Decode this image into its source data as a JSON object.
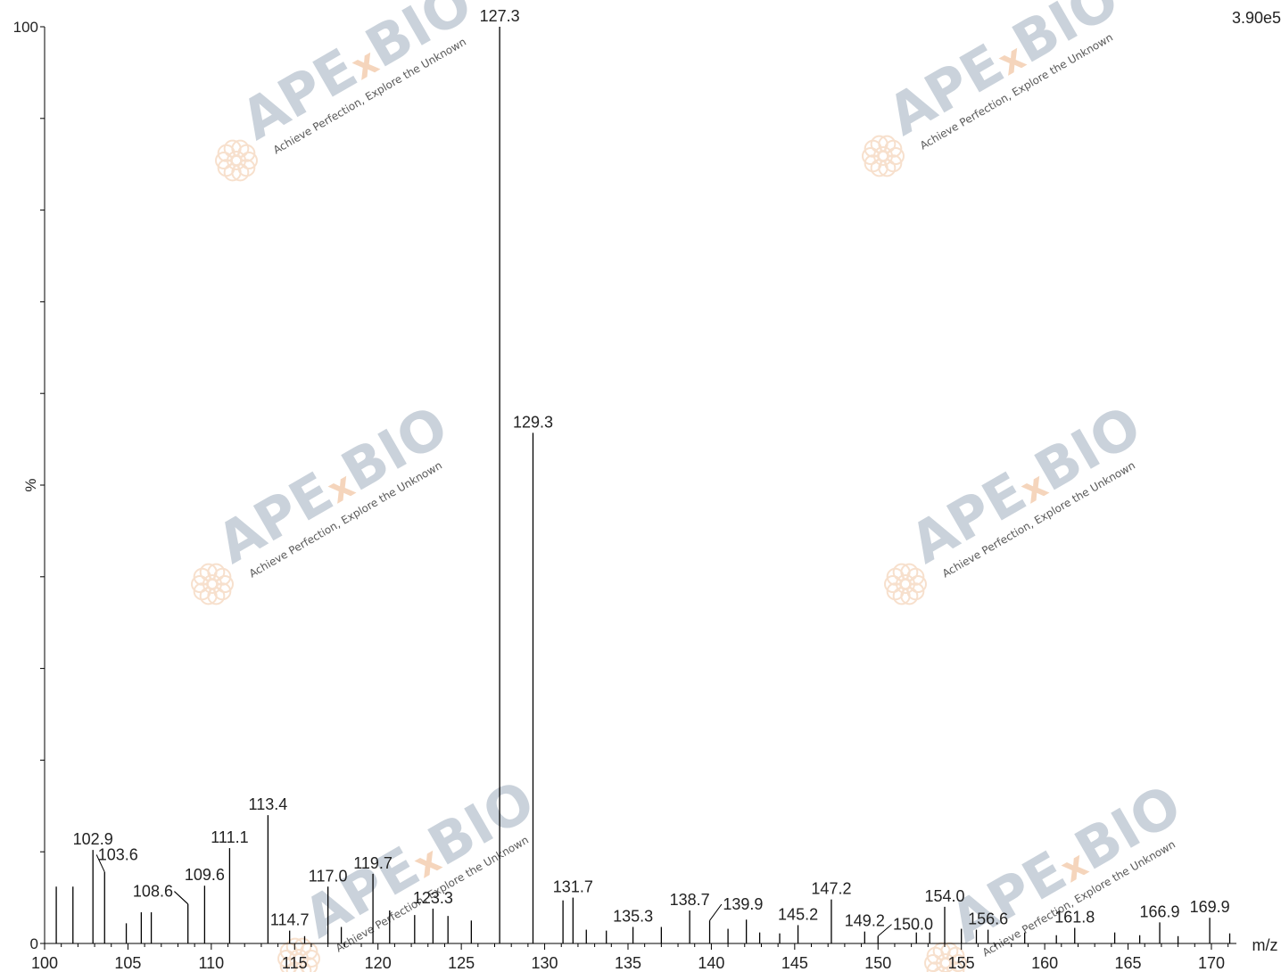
{
  "chart_data": {
    "type": "bar",
    "title": "",
    "xlabel": "m/z",
    "ylabel": "%",
    "xlim": [
      100,
      171.5
    ],
    "ylim": [
      0,
      100
    ],
    "x_ticks": [
      100,
      105,
      110,
      115,
      120,
      125,
      130,
      135,
      140,
      145,
      150,
      155,
      160,
      165,
      170
    ],
    "y_ticks": [
      0,
      100
    ],
    "intensity_label": "3.90e5",
    "grid": false,
    "legend": "none",
    "line_color": "#000000",
    "peaks": [
      {
        "x": 100.7,
        "y": 6.2
      },
      {
        "x": 101.7,
        "y": 6.2
      },
      {
        "x": 102.9,
        "y": 10.2,
        "label": "102.9"
      },
      {
        "x": 103.6,
        "y": 7.8,
        "label": "103.6",
        "label_dx": 0.8,
        "label_y": 8.9
      },
      {
        "x": 104.9,
        "y": 2.2
      },
      {
        "x": 105.8,
        "y": 3.4
      },
      {
        "x": 106.4,
        "y": 3.4
      },
      {
        "x": 108.6,
        "y": 4.3,
        "label": "108.6",
        "label_dx": -2.1,
        "label_y": 4.9
      },
      {
        "x": 109.6,
        "y": 6.3,
        "label": "109.6"
      },
      {
        "x": 111.1,
        "y": 10.4,
        "label": "111.1"
      },
      {
        "x": 113.4,
        "y": 14.0,
        "label": "113.4"
      },
      {
        "x": 114.7,
        "y": 1.4,
        "label": "114.7"
      },
      {
        "x": 115.6,
        "y": 0.8
      },
      {
        "x": 117.0,
        "y": 6.2,
        "label": "117.0"
      },
      {
        "x": 117.8,
        "y": 1.8
      },
      {
        "x": 119.7,
        "y": 7.6,
        "label": "119.7"
      },
      {
        "x": 120.7,
        "y": 3.6
      },
      {
        "x": 122.2,
        "y": 3.1
      },
      {
        "x": 123.3,
        "y": 3.8,
        "label": "123.3"
      },
      {
        "x": 124.2,
        "y": 3.0
      },
      {
        "x": 125.6,
        "y": 2.5
      },
      {
        "x": 127.3,
        "y": 100,
        "label": "127.3"
      },
      {
        "x": 129.3,
        "y": 55.7,
        "label": "129.3"
      },
      {
        "x": 131.1,
        "y": 4.7
      },
      {
        "x": 131.7,
        "y": 5.0,
        "label": "131.7"
      },
      {
        "x": 132.5,
        "y": 1.5
      },
      {
        "x": 133.7,
        "y": 1.4
      },
      {
        "x": 135.3,
        "y": 1.8,
        "label": "135.3"
      },
      {
        "x": 137.0,
        "y": 1.8
      },
      {
        "x": 138.7,
        "y": 3.6,
        "label": "138.7"
      },
      {
        "x": 139.9,
        "y": 2.5,
        "label": "139.9",
        "label_dx": 2.0,
        "label_y": 3.5
      },
      {
        "x": 141.0,
        "y": 1.6
      },
      {
        "x": 142.1,
        "y": 2.6
      },
      {
        "x": 142.9,
        "y": 1.2
      },
      {
        "x": 144.1,
        "y": 1.1
      },
      {
        "x": 145.2,
        "y": 2.0,
        "label": "145.2"
      },
      {
        "x": 147.2,
        "y": 4.8,
        "label": "147.2"
      },
      {
        "x": 149.2,
        "y": 1.3,
        "label": "149.2"
      },
      {
        "x": 150.0,
        "y": 0.8,
        "label": "150.0",
        "label_dx": 2.1,
        "label_y": 1.3
      },
      {
        "x": 152.3,
        "y": 1.2
      },
      {
        "x": 153.1,
        "y": 1.2
      },
      {
        "x": 154.0,
        "y": 4.0,
        "label": "154.0"
      },
      {
        "x": 155.0,
        "y": 1.6
      },
      {
        "x": 155.9,
        "y": 1.5
      },
      {
        "x": 156.6,
        "y": 1.5,
        "label": "156.6"
      },
      {
        "x": 158.8,
        "y": 1.2
      },
      {
        "x": 160.7,
        "y": 0.9
      },
      {
        "x": 161.8,
        "y": 1.7,
        "label": "161.8"
      },
      {
        "x": 164.2,
        "y": 1.2
      },
      {
        "x": 165.7,
        "y": 0.9
      },
      {
        "x": 166.9,
        "y": 2.3,
        "label": "166.9"
      },
      {
        "x": 168.0,
        "y": 0.8
      },
      {
        "x": 169.9,
        "y": 2.8,
        "label": "169.9"
      },
      {
        "x": 171.1,
        "y": 1.1
      }
    ]
  },
  "watermark": {
    "brand_prefix": "APE",
    "brand_x": "x",
    "brand_suffix": "BIO",
    "tagline": "Achieve Perfection, Explore the Unknown",
    "brand_color": "#b9c4cf",
    "accent_color": "#f2c8a6"
  }
}
